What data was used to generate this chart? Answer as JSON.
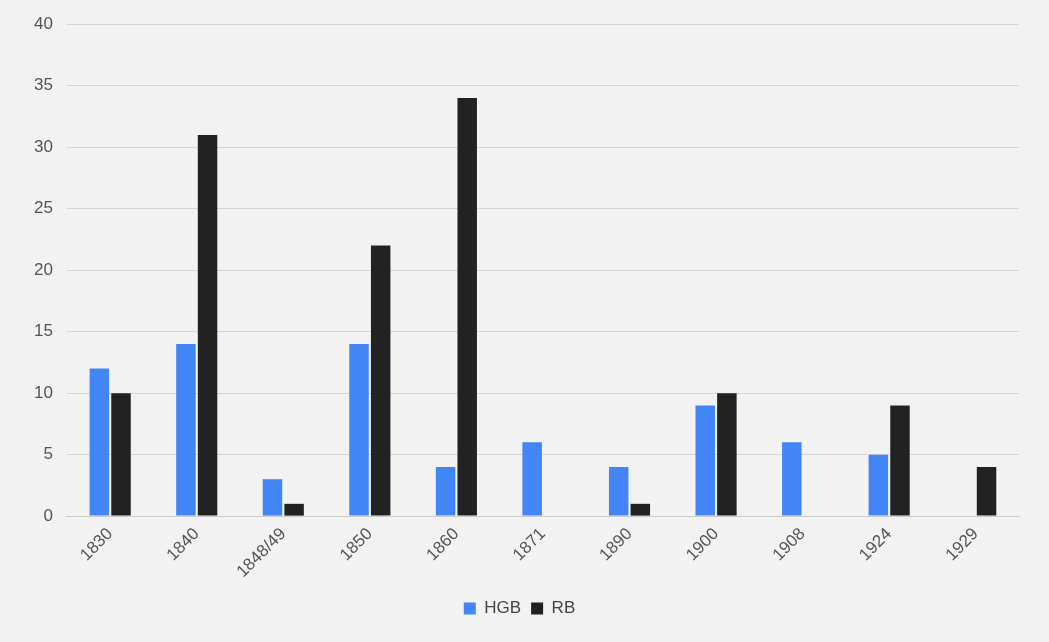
{
  "chart_data": {
    "type": "bar",
    "categories": [
      "1830",
      "1840",
      "1848/49",
      "1850",
      "1860",
      "1871",
      "1890",
      "1900",
      "1908",
      "1924",
      "1929"
    ],
    "series": [
      {
        "name": "HGB",
        "color": "#4285f4",
        "values": [
          12,
          14,
          3,
          14,
          4,
          6,
          4,
          9,
          6,
          5,
          null
        ]
      },
      {
        "name": "RB",
        "color": "#222222",
        "values": [
          10,
          31,
          1,
          22,
          34,
          null,
          1,
          10,
          null,
          9,
          4
        ]
      }
    ],
    "ylim": [
      0,
      40
    ],
    "yticks": [
      0,
      5,
      10,
      15,
      20,
      25,
      30,
      35,
      40
    ],
    "grid": "y",
    "legend": "bottom"
  }
}
